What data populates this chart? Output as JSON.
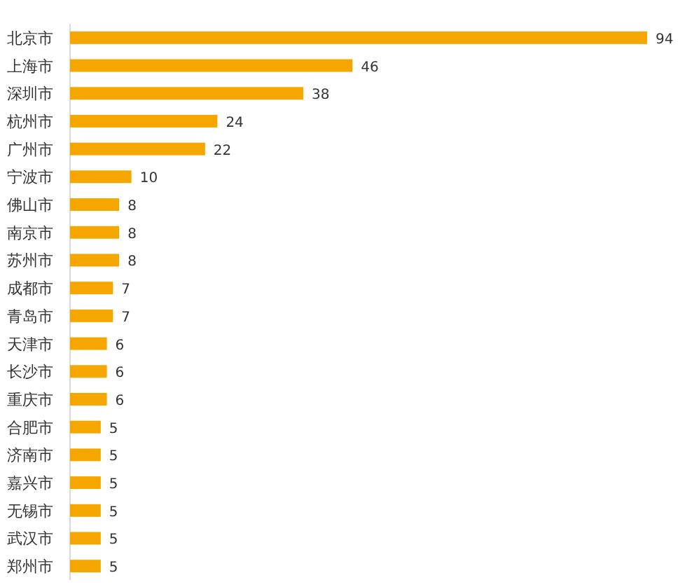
{
  "chart_data": {
    "type": "bar",
    "orientation": "horizontal",
    "data_labels": true,
    "color": "#f5a700",
    "categories": [
      "北京市",
      "上海市",
      "深圳市",
      "杭州市",
      "广州市",
      "宁波市",
      "佛山市",
      "南京市",
      "苏州市",
      "成都市",
      "青岛市",
      "天津市",
      "长沙市",
      "重庆市",
      "合肥市",
      "济南市",
      "嘉兴市",
      "无锡市",
      "武汉市",
      "郑州市"
    ],
    "values": [
      94,
      46,
      38,
      24,
      22,
      10,
      8,
      8,
      8,
      7,
      7,
      6,
      6,
      6,
      5,
      5,
      5,
      5,
      5,
      5
    ]
  }
}
